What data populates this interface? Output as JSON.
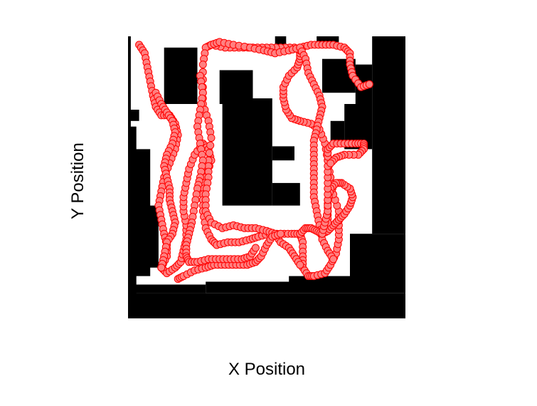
{
  "chart_data": {
    "type": "scatter",
    "title": "",
    "xlabel": "X Position",
    "ylabel": "Y Position",
    "xlim": [
      0,
      100
    ],
    "ylim": [
      0,
      100
    ],
    "grid": false,
    "legend": "none",
    "background": "occupancy-map",
    "colors": {
      "occupied": "#000000",
      "free": "#ffffff",
      "marker_fill": "#ff8080",
      "marker_edge": "#ff0000"
    },
    "obstacles": [
      {
        "x0": 0,
        "x1": 100,
        "y0": 0,
        "y1": 9
      },
      {
        "x0": 0,
        "x1": 1,
        "y0": 0,
        "y1": 100
      },
      {
        "x0": 0,
        "x1": 4,
        "y0": 70,
        "y1": 74
      },
      {
        "x0": 0,
        "x1": 3,
        "y0": 0,
        "y1": 68
      },
      {
        "x0": 0,
        "x1": 8,
        "y0": 15,
        "y1": 60
      },
      {
        "x0": 0,
        "x1": 11,
        "y0": 18,
        "y1": 40
      },
      {
        "x0": 13,
        "x1": 25,
        "y0": 76,
        "y1": 96
      },
      {
        "x0": 34,
        "x1": 52,
        "y0": 40,
        "y1": 78
      },
      {
        "x0": 33,
        "x1": 45,
        "y0": 76,
        "y1": 88
      },
      {
        "x0": 52,
        "x1": 60,
        "y0": 56,
        "y1": 61
      },
      {
        "x0": 52,
        "x1": 62,
        "y0": 40,
        "y1": 48
      },
      {
        "x0": 0,
        "x1": 28,
        "y0": 9,
        "y1": 12
      },
      {
        "x0": 28,
        "x1": 100,
        "y0": 9,
        "y1": 13
      },
      {
        "x0": 58,
        "x1": 80,
        "y0": 13,
        "y1": 15
      },
      {
        "x0": 80,
        "x1": 100,
        "y0": 13,
        "y1": 30
      },
      {
        "x0": 88,
        "x1": 100,
        "y0": 30,
        "y1": 100
      },
      {
        "x0": 90,
        "x1": 100,
        "y0": 92,
        "y1": 100
      },
      {
        "x0": 53,
        "x1": 57,
        "y0": 97,
        "y1": 100
      },
      {
        "x0": 68,
        "x1": 76,
        "y0": 98,
        "y1": 100
      },
      {
        "x0": 73,
        "x1": 78,
        "y0": 63,
        "y1": 70
      },
      {
        "x0": 78,
        "x1": 88,
        "y0": 60,
        "y1": 76
      },
      {
        "x0": 82,
        "x1": 88,
        "y0": 76,
        "y1": 90
      },
      {
        "x0": 70,
        "x1": 82,
        "y0": 80,
        "y1": 92
      }
    ],
    "series": [
      {
        "points": [
          [
            4,
            97
          ],
          [
            6,
            94
          ],
          [
            7,
            89
          ],
          [
            8,
            84
          ],
          [
            9,
            79
          ],
          [
            10,
            75
          ],
          [
            12,
            72
          ],
          [
            15,
            72
          ],
          [
            17,
            69
          ],
          [
            18,
            65
          ],
          [
            17,
            60
          ],
          [
            15,
            55
          ],
          [
            13,
            50
          ],
          [
            12,
            45
          ],
          [
            11,
            40
          ],
          [
            12,
            35
          ],
          [
            13,
            30
          ],
          [
            14,
            26
          ],
          [
            14,
            22
          ],
          [
            12,
            18
          ],
          [
            14,
            16
          ],
          [
            17,
            18
          ],
          [
            19,
            20
          ],
          [
            20,
            24
          ],
          [
            21,
            28
          ],
          [
            21,
            33
          ],
          [
            20,
            38
          ],
          [
            20,
            43
          ],
          [
            21,
            48
          ],
          [
            22,
            53
          ],
          [
            24,
            58
          ],
          [
            27,
            62
          ],
          [
            29,
            60
          ],
          [
            30,
            56
          ],
          [
            28,
            50
          ],
          [
            27,
            44
          ],
          [
            27,
            38
          ],
          [
            28,
            32
          ],
          [
            30,
            28
          ],
          [
            32,
            26
          ],
          [
            36,
            27
          ],
          [
            40,
            27
          ],
          [
            44,
            28
          ],
          [
            47,
            29
          ],
          [
            51,
            30
          ],
          [
            55,
            30
          ],
          [
            59,
            30
          ],
          [
            62,
            30
          ],
          [
            63,
            27
          ],
          [
            63,
            22
          ],
          [
            63,
            18
          ],
          [
            65,
            15
          ],
          [
            67,
            15
          ]
        ]
      },
      {
        "points": [
          [
            67,
            15
          ],
          [
            71,
            16
          ],
          [
            73,
            19
          ],
          [
            75,
            23
          ],
          [
            76,
            28
          ],
          [
            76,
            33
          ],
          [
            76,
            38
          ],
          [
            74,
            44
          ],
          [
            73,
            50
          ],
          [
            72,
            56
          ],
          [
            71,
            62
          ],
          [
            69,
            67
          ],
          [
            66,
            69
          ],
          [
            62,
            70
          ],
          [
            59,
            71
          ],
          [
            57,
            74
          ],
          [
            56,
            78
          ],
          [
            56,
            82
          ],
          [
            58,
            86
          ],
          [
            61,
            89
          ],
          [
            62,
            92
          ],
          [
            62,
            95
          ],
          [
            60,
            96
          ],
          [
            55,
            96
          ],
          [
            50,
            96
          ],
          [
            45,
            96
          ],
          [
            40,
            96
          ],
          [
            35,
            96
          ],
          [
            30,
            97
          ],
          [
            28,
            96
          ],
          [
            27,
            90
          ],
          [
            27,
            82
          ],
          [
            27,
            76
          ],
          [
            29,
            70
          ],
          [
            30,
            64
          ],
          [
            29,
            56
          ],
          [
            29,
            50
          ],
          [
            28,
            44
          ],
          [
            28,
            38
          ],
          [
            30,
            34
          ],
          [
            34,
            32
          ],
          [
            38,
            33
          ],
          [
            42,
            32
          ],
          [
            46,
            32
          ],
          [
            50,
            31
          ],
          [
            53,
            30
          ],
          [
            55,
            27
          ],
          [
            58,
            25
          ],
          [
            60,
            22
          ],
          [
            62,
            19
          ]
        ]
      },
      {
        "points": [
          [
            30,
            97
          ],
          [
            33,
            98
          ],
          [
            38,
            97
          ],
          [
            44,
            96
          ],
          [
            49,
            95
          ],
          [
            53,
            94
          ],
          [
            58,
            95
          ],
          [
            62,
            96
          ],
          [
            66,
            97
          ],
          [
            70,
            97
          ],
          [
            74,
            97
          ],
          [
            78,
            96
          ],
          [
            80,
            94
          ],
          [
            80,
            90
          ],
          [
            81,
            86
          ],
          [
            84,
            82
          ],
          [
            87,
            83
          ]
        ]
      },
      {
        "points": [
          [
            62,
            96
          ],
          [
            64,
            92
          ],
          [
            65,
            87
          ],
          [
            67,
            83
          ],
          [
            69,
            79
          ],
          [
            70,
            75
          ],
          [
            69,
            71
          ],
          [
            68,
            67
          ],
          [
            67,
            63
          ],
          [
            67,
            58
          ],
          [
            67,
            53
          ],
          [
            67,
            48
          ],
          [
            67,
            43
          ],
          [
            68,
            38
          ],
          [
            69,
            33
          ],
          [
            70,
            28
          ],
          [
            72,
            24
          ],
          [
            74,
            21
          ]
        ]
      },
      {
        "points": [
          [
            62,
            30
          ],
          [
            64,
            32
          ],
          [
            66,
            32
          ],
          [
            68,
            31
          ],
          [
            70,
            30
          ],
          [
            72,
            31
          ],
          [
            74,
            33
          ],
          [
            76,
            35
          ],
          [
            78,
            37
          ],
          [
            80,
            40
          ],
          [
            81,
            43
          ],
          [
            80,
            46
          ],
          [
            77,
            48
          ],
          [
            75,
            48
          ],
          [
            73,
            46
          ],
          [
            72,
            42
          ],
          [
            72,
            38
          ],
          [
            72,
            34
          ]
        ]
      },
      {
        "points": [
          [
            70,
            30
          ],
          [
            71,
            34
          ],
          [
            72,
            38
          ],
          [
            72,
            44
          ],
          [
            72,
            50
          ],
          [
            72,
            56
          ],
          [
            72,
            60
          ],
          [
            74,
            62
          ],
          [
            78,
            62
          ],
          [
            82,
            62
          ],
          [
            85,
            62
          ],
          [
            85,
            60
          ],
          [
            83,
            58
          ],
          [
            78,
            58
          ],
          [
            75,
            57
          ],
          [
            73,
            55
          ]
        ]
      },
      {
        "points": [
          [
            10,
            80
          ],
          [
            12,
            76
          ],
          [
            14,
            73
          ],
          [
            16,
            70
          ],
          [
            17,
            66
          ],
          [
            16,
            62
          ],
          [
            14,
            58
          ],
          [
            13,
            54
          ],
          [
            14,
            50
          ],
          [
            15,
            46
          ],
          [
            15,
            42
          ],
          [
            16,
            38
          ],
          [
            17,
            34
          ],
          [
            16,
            30
          ],
          [
            14,
            27
          ],
          [
            13,
            22
          ],
          [
            12,
            18
          ]
        ]
      },
      {
        "points": [
          [
            18,
            14
          ],
          [
            20,
            15
          ],
          [
            24,
            17
          ],
          [
            28,
            18
          ],
          [
            31,
            19
          ],
          [
            35,
            19
          ],
          [
            39,
            19
          ],
          [
            43,
            19
          ],
          [
            46,
            20
          ],
          [
            48,
            22
          ],
          [
            50,
            26
          ],
          [
            52,
            29
          ],
          [
            55,
            30
          ]
        ]
      },
      {
        "points": [
          [
            26,
            86
          ],
          [
            27,
            80
          ],
          [
            26,
            74
          ],
          [
            25,
            68
          ],
          [
            26,
            62
          ],
          [
            27,
            56
          ],
          [
            26,
            50
          ],
          [
            25,
            46
          ],
          [
            24,
            40
          ],
          [
            23,
            34
          ],
          [
            22,
            30
          ],
          [
            21,
            26
          ],
          [
            21,
            22
          ],
          [
            22,
            20
          ],
          [
            25,
            20
          ],
          [
            29,
            21
          ],
          [
            33,
            21
          ],
          [
            37,
            21
          ],
          [
            41,
            21
          ],
          [
            44,
            22
          ],
          [
            46,
            25
          ]
        ]
      }
    ]
  }
}
